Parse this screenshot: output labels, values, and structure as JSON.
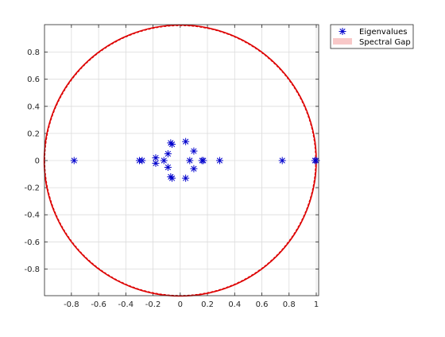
{
  "chart_data": {
    "type": "scatter",
    "title": "",
    "xlabel": "",
    "ylabel": "",
    "xlim": [
      -1,
      1
    ],
    "ylim": [
      -1,
      1
    ],
    "grid": true,
    "legend_location": "outside-top-right",
    "x_ticks": [
      -0.8,
      -0.6,
      -0.4,
      -0.2,
      0,
      0.2,
      0.4,
      0.6,
      0.8,
      1
    ],
    "x_tick_labels": [
      "-0.8",
      "-0.6",
      "-0.4",
      "-0.2",
      "0",
      "0.2",
      "0.4",
      "0.6",
      "0.8",
      "1"
    ],
    "y_ticks": [
      -0.8,
      -0.6,
      -0.4,
      -0.2,
      0,
      0.2,
      0.4,
      0.6,
      0.8
    ],
    "y_tick_labels": [
      "-0.8",
      "-0.6",
      "-0.4",
      "-0.2",
      "0",
      "0.2",
      "0.4",
      "0.6",
      "0.8"
    ],
    "series": [
      {
        "name": "Eigenvalues",
        "marker": "asterisk",
        "color": "#0000cc",
        "points": [
          {
            "x": -0.78,
            "y": 0.0
          },
          {
            "x": -0.3,
            "y": 0.0
          },
          {
            "x": -0.28,
            "y": 0.0
          },
          {
            "x": -0.18,
            "y": 0.02
          },
          {
            "x": -0.18,
            "y": -0.02
          },
          {
            "x": -0.12,
            "y": 0.0
          },
          {
            "x": -0.09,
            "y": 0.05
          },
          {
            "x": -0.09,
            "y": -0.05
          },
          {
            "x": -0.07,
            "y": 0.13
          },
          {
            "x": -0.06,
            "y": 0.12
          },
          {
            "x": -0.07,
            "y": -0.12
          },
          {
            "x": -0.06,
            "y": -0.13
          },
          {
            "x": 0.04,
            "y": 0.14
          },
          {
            "x": 0.04,
            "y": -0.13
          },
          {
            "x": 0.07,
            "y": 0.0
          },
          {
            "x": 0.1,
            "y": 0.07
          },
          {
            "x": 0.1,
            "y": -0.06
          },
          {
            "x": 0.16,
            "y": 0.0
          },
          {
            "x": 0.17,
            "y": 0.0
          },
          {
            "x": 0.29,
            "y": 0.0
          },
          {
            "x": 0.75,
            "y": 0.0
          },
          {
            "x": 0.99,
            "y": 0.0
          },
          {
            "x": 1.0,
            "y": 0.0
          }
        ]
      },
      {
        "name": "Spectral Gap",
        "type": "circle",
        "color": "#dd0000",
        "legend_color": "#f8c8c8",
        "center": [
          0,
          0
        ],
        "radius": 1
      }
    ]
  }
}
